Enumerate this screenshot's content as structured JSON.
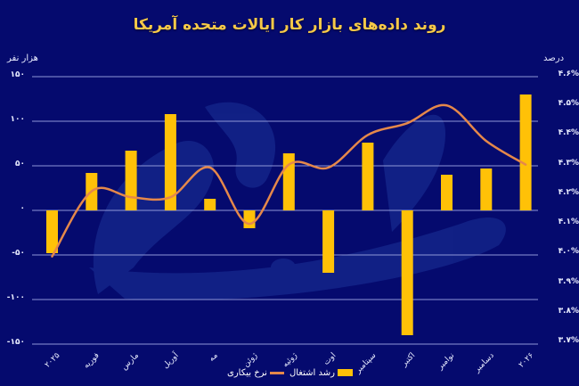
{
  "title": "روند داده‌های بازار کار ایالات متحده آمریکا",
  "left_axis": {
    "title": "هزار نفر",
    "ticks": [
      "۱۵۰",
      "۱۰۰",
      "۵۰",
      "۰",
      "-۵۰",
      "-۱۰۰",
      "-۱۵۰"
    ]
  },
  "right_axis": {
    "title": "درصد",
    "ticks": [
      "۴.۶%",
      "۴.۵%",
      "۴.۴%",
      "۴.۳%",
      "۴.۲%",
      "۴.۱%",
      "۴.۰%",
      "۳.۹%",
      "۳.۸%",
      "۳.۷%"
    ]
  },
  "x_labels": [
    "۲۰۲۵",
    "فوریه",
    "مارس",
    "آوریل",
    "مه",
    "ژوئن",
    "ژوئیه",
    "اوت",
    "سپتامبر",
    "اکتبر",
    "نوامبر",
    "دسامبر",
    "۲۰۲۶"
  ],
  "legend": {
    "bar_label": "رشد اشتغال",
    "line_label": "نرخ بیکاری"
  },
  "colors": {
    "background": "#050a6e",
    "bar": "#ffc107",
    "line": "#e5884a",
    "grid": "#8f97d8",
    "title": "#f7c948"
  },
  "chart_data": {
    "type": "bar+line",
    "title": "روند داده‌های بازار کار ایالات متحده آمریکا",
    "categories": [
      "2025",
      "February",
      "March",
      "April",
      "May",
      "June",
      "July",
      "August",
      "September",
      "October",
      "November",
      "December",
      "2026"
    ],
    "categories_fa": [
      "۲۰۲۵",
      "فوریه",
      "مارس",
      "آوریل",
      "مه",
      "ژوئن",
      "ژوئیه",
      "اوت",
      "سپتامبر",
      "اکتبر",
      "نوامبر",
      "دسامبر",
      "۲۰۲۶"
    ],
    "series": [
      {
        "name": "رشد اشتغال",
        "name_en": "Employment growth",
        "type": "bar",
        "axis": "left",
        "unit": "thousand people",
        "values": [
          -48,
          42,
          67,
          108,
          13,
          -20,
          64,
          -70,
          76,
          -140,
          40,
          47,
          130
        ]
      },
      {
        "name": "نرخ بیکاری",
        "name_en": "Unemployment rate",
        "type": "line",
        "axis": "right",
        "unit": "%",
        "values": [
          4.0,
          4.2,
          4.2,
          4.2,
          4.3,
          4.1,
          4.3,
          4.3,
          4.4,
          4.4,
          4.5,
          4.4,
          4.3
        ]
      }
    ],
    "ylabel_left": "هزار نفر",
    "ylabel_right": "درصد",
    "ylim_left": [
      -150,
      150
    ],
    "ylim_right": [
      3.7,
      4.6
    ],
    "grid": true,
    "legend_position": "bottom"
  }
}
